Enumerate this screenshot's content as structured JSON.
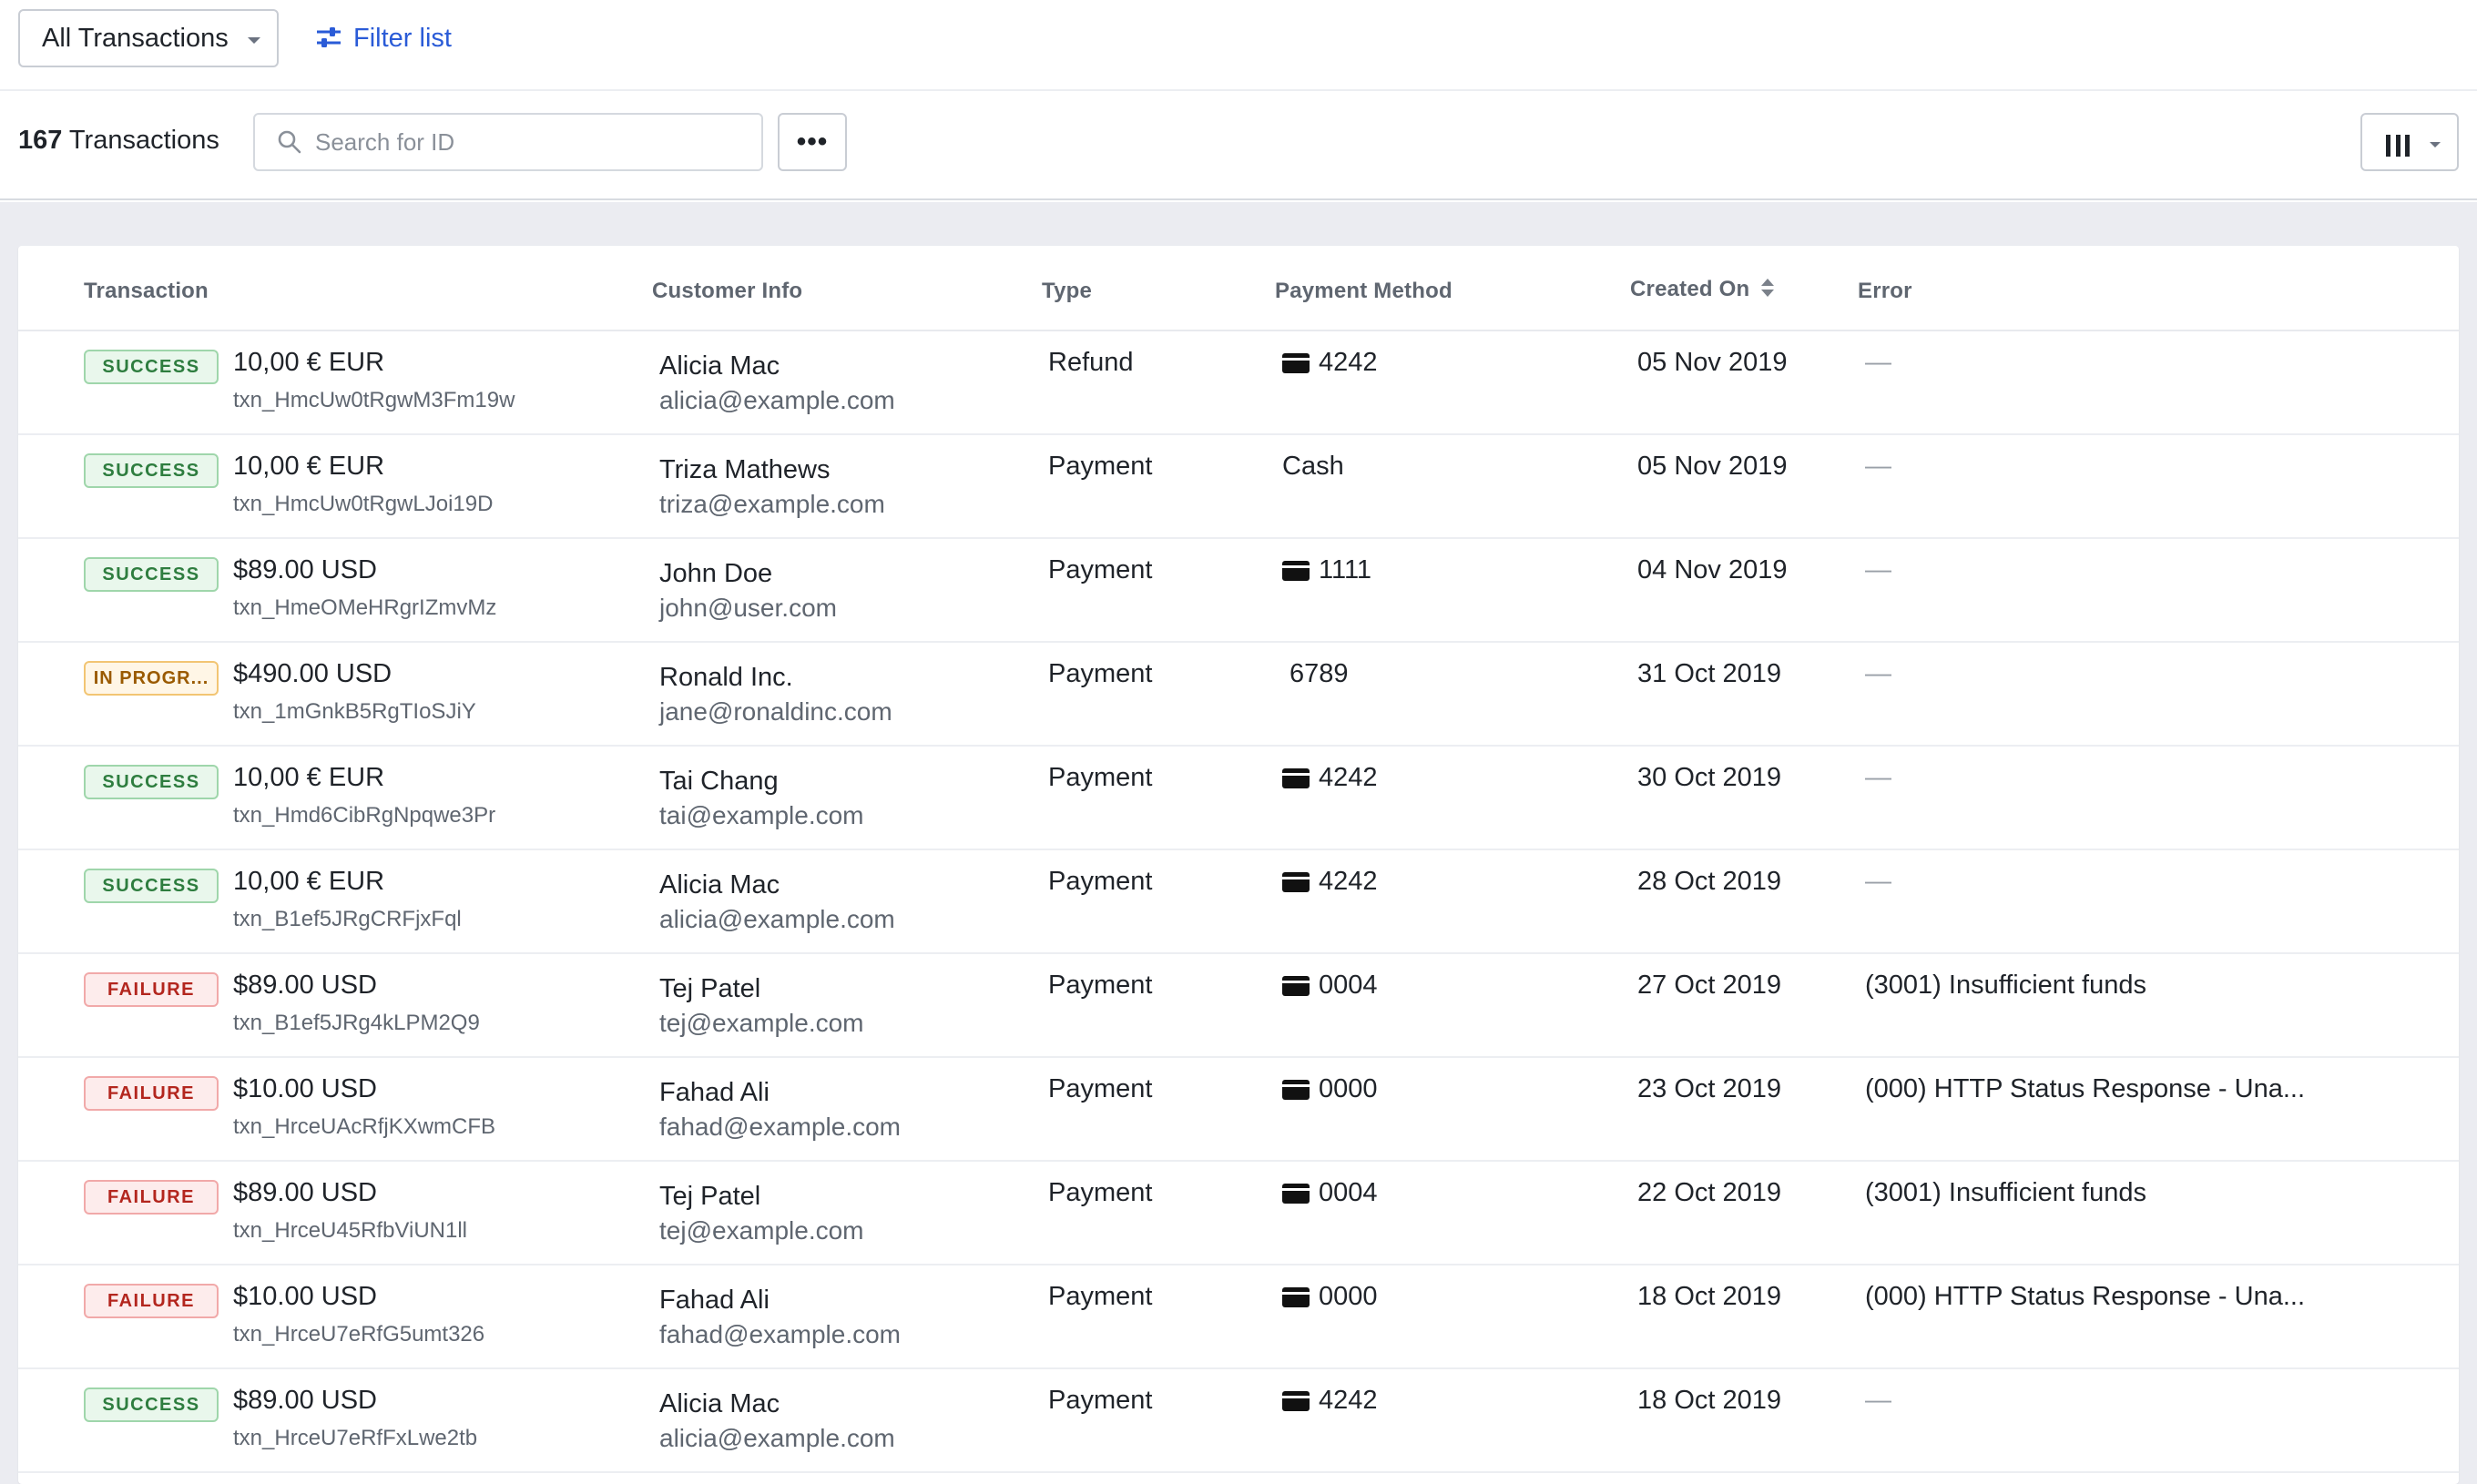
{
  "topbar": {
    "view_select_label": "All Transactions",
    "filter_label": "Filter list"
  },
  "toolbar": {
    "count": "167",
    "count_suffix": " Transactions",
    "search_placeholder": "Search for ID",
    "more_label": "•••"
  },
  "table": {
    "headers": {
      "transaction": "Transaction",
      "customer": "Customer Info",
      "type": "Type",
      "payment_method": "Payment Method",
      "created_on": "Created On",
      "error": "Error"
    },
    "rows": [
      {
        "status": "SUCCESS",
        "status_kind": "success",
        "amount": "10,00 € EUR",
        "id": "txn_HmcUw0tRgwM3Fm19w",
        "name": "Alicia Mac",
        "email": "alicia@example.com",
        "type": "Refund",
        "pm": "4242",
        "pm_card": true,
        "created": "05 Nov 2019",
        "error": "—"
      },
      {
        "status": "SUCCESS",
        "status_kind": "success",
        "amount": "10,00 € EUR",
        "id": "txn_HmcUw0tRgwLJoi19D",
        "name": "Triza Mathews",
        "email": "triza@example.com",
        "type": "Payment",
        "pm": "Cash",
        "pm_card": false,
        "created": "05 Nov 2019",
        "error": "—"
      },
      {
        "status": "SUCCESS",
        "status_kind": "success",
        "amount": "$89.00 USD",
        "id": "txn_HmeOMeHRgrIZmvMz",
        "name": "John Doe",
        "email": "john@user.com",
        "type": "Payment",
        "pm": "1111",
        "pm_card": true,
        "created": "04 Nov 2019",
        "error": "—"
      },
      {
        "status": "IN PROGR...",
        "status_kind": "pending",
        "amount": "$490.00 USD",
        "id": "txn_1mGnkB5RgTIoSJiY",
        "name": "Ronald Inc.",
        "email": "jane@ronaldinc.com",
        "type": "Payment",
        "pm": "6789",
        "pm_card": false,
        "created": "31 Oct 2019",
        "error": "—"
      },
      {
        "status": "SUCCESS",
        "status_kind": "success",
        "amount": "10,00 € EUR",
        "id": "txn_Hmd6CibRgNpqwe3Pr",
        "name": "Tai Chang",
        "email": "tai@example.com",
        "type": "Payment",
        "pm": "4242",
        "pm_card": true,
        "created": "30 Oct 2019",
        "error": "—"
      },
      {
        "status": "SUCCESS",
        "status_kind": "success",
        "amount": "10,00 € EUR",
        "id": "txn_B1ef5JRgCRFjxFql",
        "name": "Alicia Mac",
        "email": "alicia@example.com",
        "type": "Payment",
        "pm": "4242",
        "pm_card": true,
        "created": "28 Oct 2019",
        "error": "—"
      },
      {
        "status": "FAILURE",
        "status_kind": "failure",
        "amount": "$89.00 USD",
        "id": "txn_B1ef5JRg4kLPM2Q9",
        "name": "Tej Patel",
        "email": "tej@example.com",
        "type": "Payment",
        "pm": "0004",
        "pm_card": true,
        "created": "27 Oct 2019",
        "error": "(3001) Insufficient funds"
      },
      {
        "status": "FAILURE",
        "status_kind": "failure",
        "amount": "$10.00 USD",
        "id": "txn_HrceUAcRfjKXwmCFB",
        "name": "Fahad Ali",
        "email": "fahad@example.com",
        "type": "Payment",
        "pm": "0000",
        "pm_card": true,
        "created": "23 Oct 2019",
        "error": "(000) HTTP Status Response - Una..."
      },
      {
        "status": "FAILURE",
        "status_kind": "failure",
        "amount": "$89.00 USD",
        "id": "txn_HrceU45RfbViUN1ll",
        "name": "Tej Patel",
        "email": "tej@example.com",
        "type": "Payment",
        "pm": "0004",
        "pm_card": true,
        "created": "22 Oct 2019",
        "error": "(3001) Insufficient funds"
      },
      {
        "status": "FAILURE",
        "status_kind": "failure",
        "amount": "$10.00 USD",
        "id": "txn_HrceU7eRfG5umt326",
        "name": "Fahad Ali",
        "email": "fahad@example.com",
        "type": "Payment",
        "pm": "0000",
        "pm_card": true,
        "created": "18 Oct 2019",
        "error": "(000) HTTP Status Response - Una..."
      },
      {
        "status": "SUCCESS",
        "status_kind": "success",
        "amount": "$89.00 USD",
        "id": "txn_HrceU7eRfFxLwe2tb",
        "name": "Alicia Mac",
        "email": "alicia@example.com",
        "type": "Payment",
        "pm": "4242",
        "pm_card": true,
        "created": "18 Oct 2019",
        "error": "—"
      }
    ]
  },
  "colors": {
    "accent": "#2a5bd7",
    "success": "#2e7d3f",
    "failure": "#b3261e",
    "pending": "#9a5a00",
    "background": "#ebecf1"
  },
  "icons": [
    "chevron-down-icon",
    "filter-sliders-icon",
    "search-icon",
    "more-icon",
    "columns-icon",
    "sort-icon",
    "card-icon"
  ]
}
